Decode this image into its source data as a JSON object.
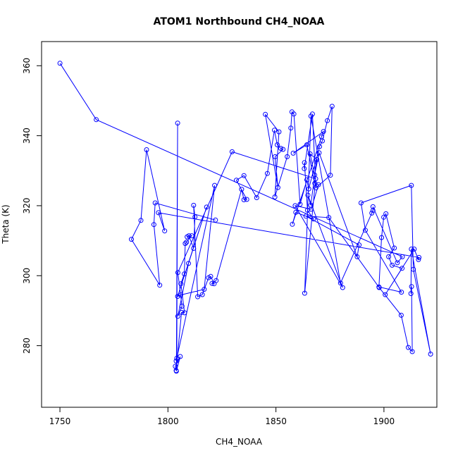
{
  "chart_data": {
    "type": "scatter",
    "title": "ATOM1 Northbound CH4_NOAA",
    "xlabel": "CH4_NOAA",
    "ylabel": "Theta (K)",
    "xlim": [
      1741.5,
      1924.5
    ],
    "ylim": [
      262.4,
      366.9
    ],
    "xticks": [
      1750,
      1800,
      1850,
      1900
    ],
    "yticks": [
      280,
      300,
      320,
      340,
      360
    ],
    "grid": false,
    "legend": "none",
    "color": "#0000ff",
    "connected": true,
    "marker": "open-circle",
    "series": [
      {
        "points": [
          [
            1750.0,
            360.7
          ],
          [
            1766.8,
            344.6
          ],
          [
            1908.5,
            305.4
          ],
          [
            1906.2,
            303.7
          ],
          [
            1894.9,
            319.7
          ],
          [
            1894.9,
            318.6
          ],
          [
            1894.4,
            317.9
          ],
          [
            1879.9,
            297.9
          ],
          [
            1866.2,
            345.6
          ],
          [
            1863.3,
            295.0
          ],
          [
            1868.4,
            327.7
          ],
          [
            1829.7,
            335.4
          ],
          [
            1804.6,
            300.9
          ],
          [
            1806.5,
            291.3
          ],
          [
            1804.6,
            288.4
          ],
          [
            1809.5,
            303.5
          ],
          [
            1817.9,
            319.6
          ],
          [
            1804.5,
            294.1
          ],
          [
            1805.9,
            294.5
          ],
          [
            1816.8,
            296.1
          ],
          [
            1821.6,
            325.8
          ],
          [
            1803.8,
            275.6
          ],
          [
            1804.1,
            276.4
          ],
          [
            1804.5,
            343.6
          ],
          [
            1803.9,
            272.7
          ],
          [
            1805.7,
            276.9
          ],
          [
            1803.4,
            274.1
          ],
          [
            1803.8,
            272.9
          ],
          [
            1806.3,
            289.5
          ],
          [
            1807.7,
            289.4
          ],
          [
            1806.0,
            297.7
          ],
          [
            1807.6,
            300.5
          ],
          [
            1808.0,
            309.2
          ],
          [
            1808.6,
            309.6
          ],
          [
            1811.0,
            311.4
          ],
          [
            1808.9,
            311.1
          ],
          [
            1809.7,
            311.4
          ],
          [
            1811.9,
            307.8
          ],
          [
            1812.5,
            316.8
          ],
          [
            1811.9,
            320.1
          ],
          [
            1813.8,
            294.0
          ],
          [
            1815.9,
            294.6
          ],
          [
            1818.8,
            299.4
          ],
          [
            1819.8,
            299.8
          ],
          [
            1821.4,
            297.7
          ],
          [
            1820.4,
            297.8
          ],
          [
            1822.3,
            298.6
          ],
          [
            1834.1,
            324.7
          ],
          [
            1835.2,
            321.7
          ],
          [
            1836.5,
            321.8
          ],
          [
            1831.7,
            327.3
          ],
          [
            1835.2,
            328.6
          ],
          [
            1841.1,
            322.3
          ],
          [
            1846.0,
            329.2
          ],
          [
            1849.3,
            341.6
          ],
          [
            1850.6,
            337.4
          ],
          [
            1852.2,
            336.4
          ],
          [
            1853.3,
            336.1
          ],
          [
            1849.6,
            334.0
          ],
          [
            1850.9,
            325.2
          ],
          [
            1845.1,
            346.1
          ],
          [
            1851.4,
            341.1
          ],
          [
            1849.5,
            322.5
          ],
          [
            1855.2,
            334.0
          ],
          [
            1856.9,
            342.2
          ],
          [
            1857.4,
            346.8
          ],
          [
            1858.3,
            346.2
          ],
          [
            1861.2,
            320.4
          ],
          [
            1864.3,
            327.4
          ],
          [
            1865.2,
            324.8
          ],
          [
            1870.2,
            336.9
          ],
          [
            1871.5,
            338.5
          ],
          [
            1873.8,
            344.3
          ],
          [
            1876.0,
            348.4
          ],
          [
            1875.2,
            328.7
          ],
          [
            1868.5,
            325.1
          ],
          [
            1866.9,
            346.2
          ],
          [
            1863.1,
            330.6
          ],
          [
            1863.2,
            332.3
          ],
          [
            1864.6,
            318.7
          ],
          [
            1867.4,
            316.2
          ],
          [
            1859.2,
            318.1
          ],
          [
            1857.6,
            314.7
          ],
          [
            1871.1,
            339.7
          ],
          [
            1872.0,
            341.2
          ],
          [
            1858.0,
            335.0
          ],
          [
            1864.3,
            337.4
          ],
          [
            1868.0,
            326.4
          ],
          [
            1869.7,
            326.0
          ],
          [
            1866.3,
            319.0
          ],
          [
            1858.9,
            320.0
          ],
          [
            1880.9,
            296.6
          ],
          [
            1864.8,
            323.0
          ],
          [
            1866.1,
            320.1
          ],
          [
            1868.9,
            333.2
          ],
          [
            1865.8,
            334.8
          ],
          [
            1867.9,
            328.8
          ],
          [
            1870.0,
            335.1
          ],
          [
            1887.6,
            305.4
          ],
          [
            1888.5,
            308.8
          ],
          [
            1863.9,
            317.0
          ],
          [
            1874.5,
            316.6
          ],
          [
            1897.8,
            296.6
          ],
          [
            1908.0,
            288.7
          ],
          [
            1911.3,
            279.5
          ],
          [
            1913.1,
            278.3
          ],
          [
            1912.8,
            296.9
          ],
          [
            1912.5,
            294.9
          ],
          [
            1912.7,
            307.6
          ],
          [
            1921.6,
            277.6
          ],
          [
            1913.6,
            301.8
          ],
          [
            1912.7,
            325.8
          ],
          [
            1889.4,
            320.8
          ],
          [
            1891.4,
            313.0
          ],
          [
            1908.1,
            295.3
          ],
          [
            1897.7,
            296.8
          ],
          [
            1898.9,
            310.9
          ],
          [
            1899.9,
            316.7
          ],
          [
            1900.9,
            317.7
          ],
          [
            1904.8,
            307.9
          ],
          [
            1902.2,
            305.4
          ],
          [
            1903.8,
            303.0
          ],
          [
            1908.4,
            302.1
          ],
          [
            1900.6,
            294.6
          ],
          [
            1914.0,
            307.6
          ],
          [
            1916.0,
            304.6
          ],
          [
            1916.2,
            305.2
          ],
          [
            1795.6,
            318.0
          ],
          [
            1798.5,
            312.8
          ],
          [
            1790.1,
            336.0
          ],
          [
            1787.5,
            315.8
          ],
          [
            1783.1,
            310.4
          ],
          [
            1796.2,
            297.3
          ],
          [
            1793.5,
            314.6
          ],
          [
            1794.1,
            320.8
          ],
          [
            1822.0,
            315.9
          ]
        ]
      }
    ]
  }
}
